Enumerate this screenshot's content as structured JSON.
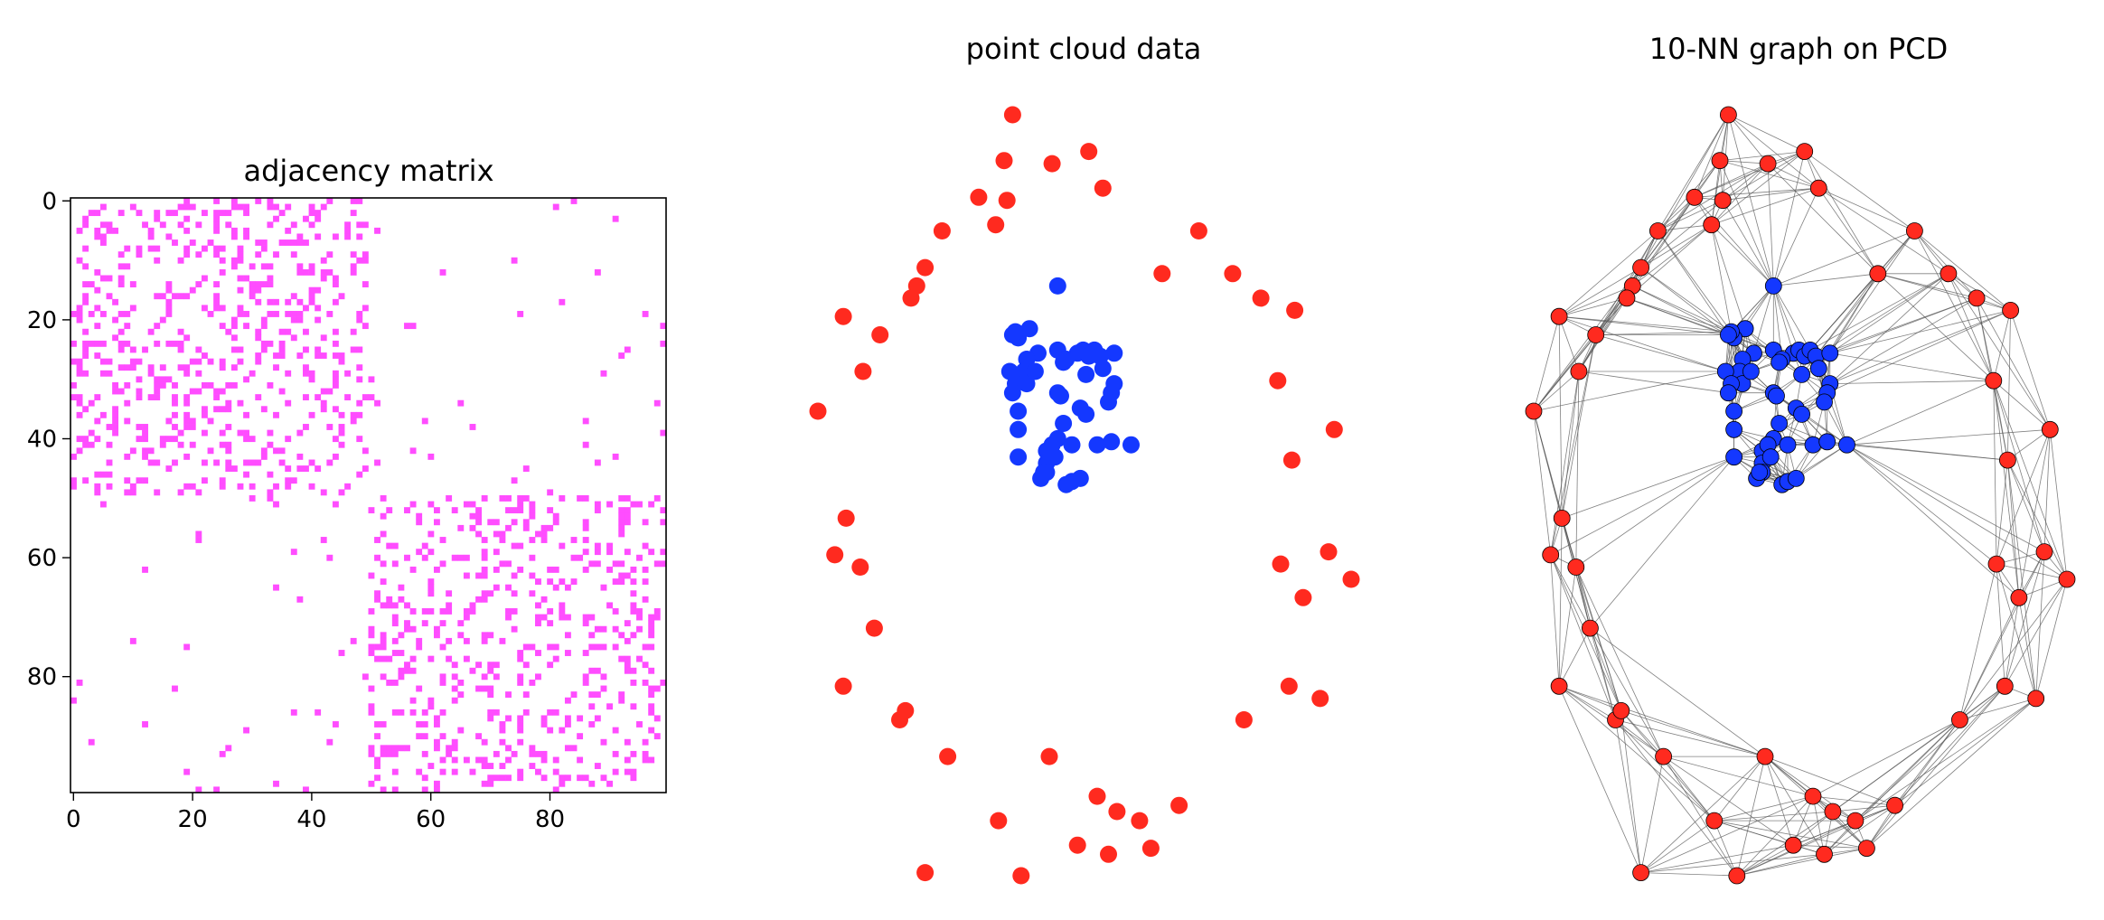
{
  "colors": {
    "adjacency": "#ff4dff",
    "class_a": "#ff2a1f",
    "class_b": "#1438ff",
    "edge": "#555555",
    "node_outline": "#000000"
  },
  "chart_data": [
    {
      "type": "heatmap",
      "title": "adjacency matrix",
      "size": 100,
      "xticks": [
        0,
        20,
        40,
        60,
        80
      ],
      "yticks": [
        0,
        20,
        40,
        60,
        80
      ],
      "xlim": [
        -0.5,
        99.5
      ],
      "ylim": [
        99.5,
        -0.5
      ],
      "blocks": [
        {
          "start": 0,
          "end": 49,
          "density": 0.2
        },
        {
          "start": 50,
          "end": 99,
          "density": 0.2
        }
      ],
      "cross_block_density": 0.01
    },
    {
      "type": "scatter",
      "title": "point cloud data",
      "axes": "off",
      "series": [
        {
          "color": "#ff2a1f",
          "points": [
            [
              0.06,
              1.0
            ],
            [
              0.03,
              0.85
            ],
            [
              0.2,
              0.84
            ],
            [
              0.33,
              0.88
            ],
            [
              0.38,
              0.76
            ],
            [
              -0.06,
              0.73
            ],
            [
              0.04,
              0.72
            ],
            [
              0.0,
              0.64
            ],
            [
              -0.19,
              0.62
            ],
            [
              -0.25,
              0.5
            ],
            [
              -0.28,
              0.44
            ],
            [
              -0.3,
              0.4
            ],
            [
              0.59,
              0.48
            ],
            [
              0.72,
              0.62
            ],
            [
              0.84,
              0.48
            ],
            [
              0.94,
              0.4
            ],
            [
              1.06,
              0.36
            ],
            [
              -0.54,
              0.34
            ],
            [
              -0.41,
              0.28
            ],
            [
              -0.47,
              0.16
            ],
            [
              1.0,
              0.13
            ],
            [
              -0.63,
              0.03
            ],
            [
              1.2,
              -0.03
            ],
            [
              1.05,
              -0.13
            ],
            [
              -0.53,
              -0.32
            ],
            [
              -0.57,
              -0.44
            ],
            [
              -0.48,
              -0.48
            ],
            [
              1.18,
              -0.43
            ],
            [
              1.26,
              -0.52
            ],
            [
              1.01,
              -0.47
            ],
            [
              1.09,
              -0.58
            ],
            [
              -0.43,
              -0.68
            ],
            [
              -0.54,
              -0.87
            ],
            [
              -0.34,
              -0.98
            ],
            [
              -0.32,
              -0.95
            ],
            [
              1.04,
              -0.87
            ],
            [
              1.15,
              -0.91
            ],
            [
              0.88,
              -0.98
            ],
            [
              -0.17,
              -1.1
            ],
            [
              0.19,
              -1.1
            ],
            [
              0.36,
              -1.23
            ],
            [
              0.43,
              -1.28
            ],
            [
              0.65,
              -1.26
            ],
            [
              0.51,
              -1.31
            ],
            [
              0.01,
              -1.31
            ],
            [
              0.29,
              -1.39
            ],
            [
              0.09,
              -1.49
            ],
            [
              0.4,
              -1.42
            ],
            [
              0.55,
              -1.4
            ],
            [
              -0.25,
              -1.48
            ]
          ]
        },
        {
          "color": "#1438ff",
          "points": [
            [
              0.22,
              0.44
            ],
            [
              0.12,
              0.3
            ],
            [
              0.08,
              0.27
            ],
            [
              0.07,
              0.29
            ],
            [
              0.06,
              0.28
            ],
            [
              0.22,
              0.23
            ],
            [
              0.29,
              0.22
            ],
            [
              0.25,
              0.2
            ],
            [
              0.24,
              0.19
            ],
            [
              0.31,
              0.23
            ],
            [
              0.33,
              0.21
            ],
            [
              0.35,
              0.23
            ],
            [
              0.37,
              0.21
            ],
            [
              0.42,
              0.22
            ],
            [
              0.38,
              0.17
            ],
            [
              0.32,
              0.15
            ],
            [
              0.15,
              0.22
            ],
            [
              0.11,
              0.2
            ],
            [
              0.1,
              0.16
            ],
            [
              0.11,
              0.12
            ],
            [
              0.14,
              0.16
            ],
            [
              0.05,
              0.16
            ],
            [
              0.07,
              0.12
            ],
            [
              0.06,
              0.09
            ],
            [
              0.42,
              0.12
            ],
            [
              0.41,
              0.09
            ],
            [
              0.4,
              0.06
            ],
            [
              0.22,
              0.09
            ],
            [
              0.23,
              0.08
            ],
            [
              0.08,
              0.03
            ],
            [
              0.3,
              0.04
            ],
            [
              0.32,
              0.02
            ],
            [
              0.08,
              -0.03
            ],
            [
              0.24,
              -0.01
            ],
            [
              0.22,
              -0.06
            ],
            [
              0.27,
              -0.08
            ],
            [
              0.36,
              -0.08
            ],
            [
              0.41,
              -0.07
            ],
            [
              0.48,
              -0.08
            ],
            [
              0.08,
              -0.12
            ],
            [
              0.18,
              -0.1
            ],
            [
              0.2,
              -0.08
            ],
            [
              0.18,
              -0.14
            ],
            [
              0.18,
              -0.17
            ],
            [
              0.16,
              -0.19
            ],
            [
              0.25,
              -0.21
            ],
            [
              0.27,
              -0.2
            ],
            [
              0.3,
              -0.19
            ],
            [
              0.17,
              -0.17
            ],
            [
              0.21,
              -0.12
            ]
          ]
        }
      ]
    },
    {
      "type": "scatter",
      "title": "10-NN graph on PCD",
      "axes": "off",
      "edges": "10-nearest-neighbor graph over the same point cloud"
    }
  ]
}
